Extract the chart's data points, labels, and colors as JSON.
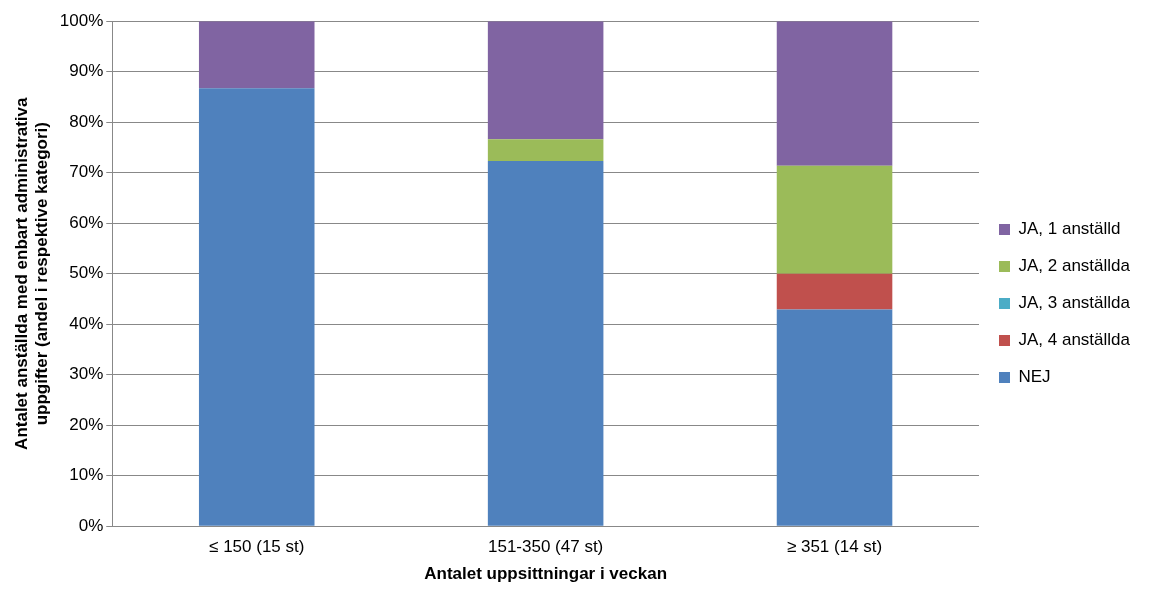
{
  "chart_data": {
    "type": "bar",
    "stacked": true,
    "xlabel": "Antalet uppsittningar i veckan",
    "ylabel": "Antalet anställda med enbart administrativa\nuppgifter (andel i respektive kategori)",
    "categories": [
      "≤ 150 (15 st)",
      "151-350 (47 st)",
      "≥ 351 (14 st)"
    ],
    "series": [
      {
        "name": "NEJ",
        "color": "#4f81bd",
        "values": [
          86.7,
          72.3,
          42.9
        ]
      },
      {
        "name": "JA, 4 anställda",
        "color": "#c0504d",
        "values": [
          0,
          0,
          7.1
        ]
      },
      {
        "name": "JA, 3 anställda",
        "color": "#4bacc6",
        "values": [
          0,
          0,
          0
        ]
      },
      {
        "name": "JA, 2 anställda",
        "color": "#9bbb59",
        "values": [
          0,
          4.3,
          21.4
        ]
      },
      {
        "name": "JA, 1 anställd",
        "color": "#8064a2",
        "values": [
          13.3,
          23.4,
          28.6
        ]
      }
    ],
    "ylim": [
      0,
      100
    ],
    "yticks": [
      {
        "value": 0,
        "label": "0%"
      },
      {
        "value": 10,
        "label": "10%"
      },
      {
        "value": 20,
        "label": "20%"
      },
      {
        "value": 30,
        "label": "30%"
      },
      {
        "value": 40,
        "label": "40%"
      },
      {
        "value": 50,
        "label": "50%"
      },
      {
        "value": 60,
        "label": "60%"
      },
      {
        "value": 70,
        "label": "70%"
      },
      {
        "value": 80,
        "label": "80%"
      },
      {
        "value": 90,
        "label": "90%"
      },
      {
        "value": 100,
        "label": "100%"
      }
    ],
    "grid": "y",
    "legend": "right"
  }
}
